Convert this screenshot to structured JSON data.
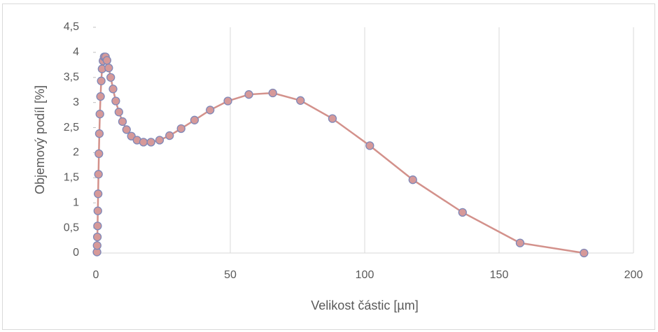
{
  "chart_data": {
    "type": "scatter",
    "x_label": "Velikost částic [µm]",
    "y_label": "Objemový podíl [%]",
    "xlim": [
      0,
      200
    ],
    "xticks": [
      0,
      50,
      100,
      150,
      200
    ],
    "ylim": [
      0,
      4.5
    ],
    "yticks": [
      0,
      {
        "value": 0.5,
        "label": "0,5"
      },
      1,
      {
        "value": 1.5,
        "label": "1,5"
      },
      2,
      {
        "value": 2.5,
        "label": "2,5"
      },
      3,
      {
        "value": 3.5,
        "label": "3,5"
      },
      4,
      {
        "value": 4.5,
        "label": "4,5"
      }
    ],
    "grid": true,
    "series": [
      {
        "color": "#d3918b",
        "marker_color": "#d69999",
        "marker_edge": "#7f88b8",
        "x": [
          0.4,
          0.46,
          0.54,
          0.62,
          0.72,
          0.83,
          0.96,
          1.11,
          1.28,
          1.48,
          1.72,
          1.99,
          2.3,
          2.66,
          3.08,
          3.56,
          4.12,
          4.77,
          5.52,
          6.38,
          7.39,
          8.55,
          9.89,
          11.4,
          13.2,
          15.3,
          17.7,
          20.5,
          23.7,
          27.4,
          31.7,
          36.7,
          42.5,
          49.1,
          56.9,
          65.8,
          76.1,
          88.0,
          101.9,
          117.9,
          136.4,
          157.8,
          181.6
        ],
        "values": [
          0.02,
          0.15,
          0.32,
          0.54,
          0.84,
          1.18,
          1.57,
          1.98,
          2.38,
          2.77,
          3.12,
          3.43,
          3.67,
          3.83,
          3.91,
          3.91,
          3.84,
          3.69,
          3.5,
          3.27,
          3.03,
          2.81,
          2.62,
          2.46,
          2.33,
          2.25,
          2.21,
          2.21,
          2.25,
          2.34,
          2.48,
          2.65,
          2.85,
          3.03,
          3.16,
          3.19,
          3.04,
          2.68,
          2.14,
          1.46,
          0.81,
          0.2,
          0.0
        ]
      }
    ]
  }
}
